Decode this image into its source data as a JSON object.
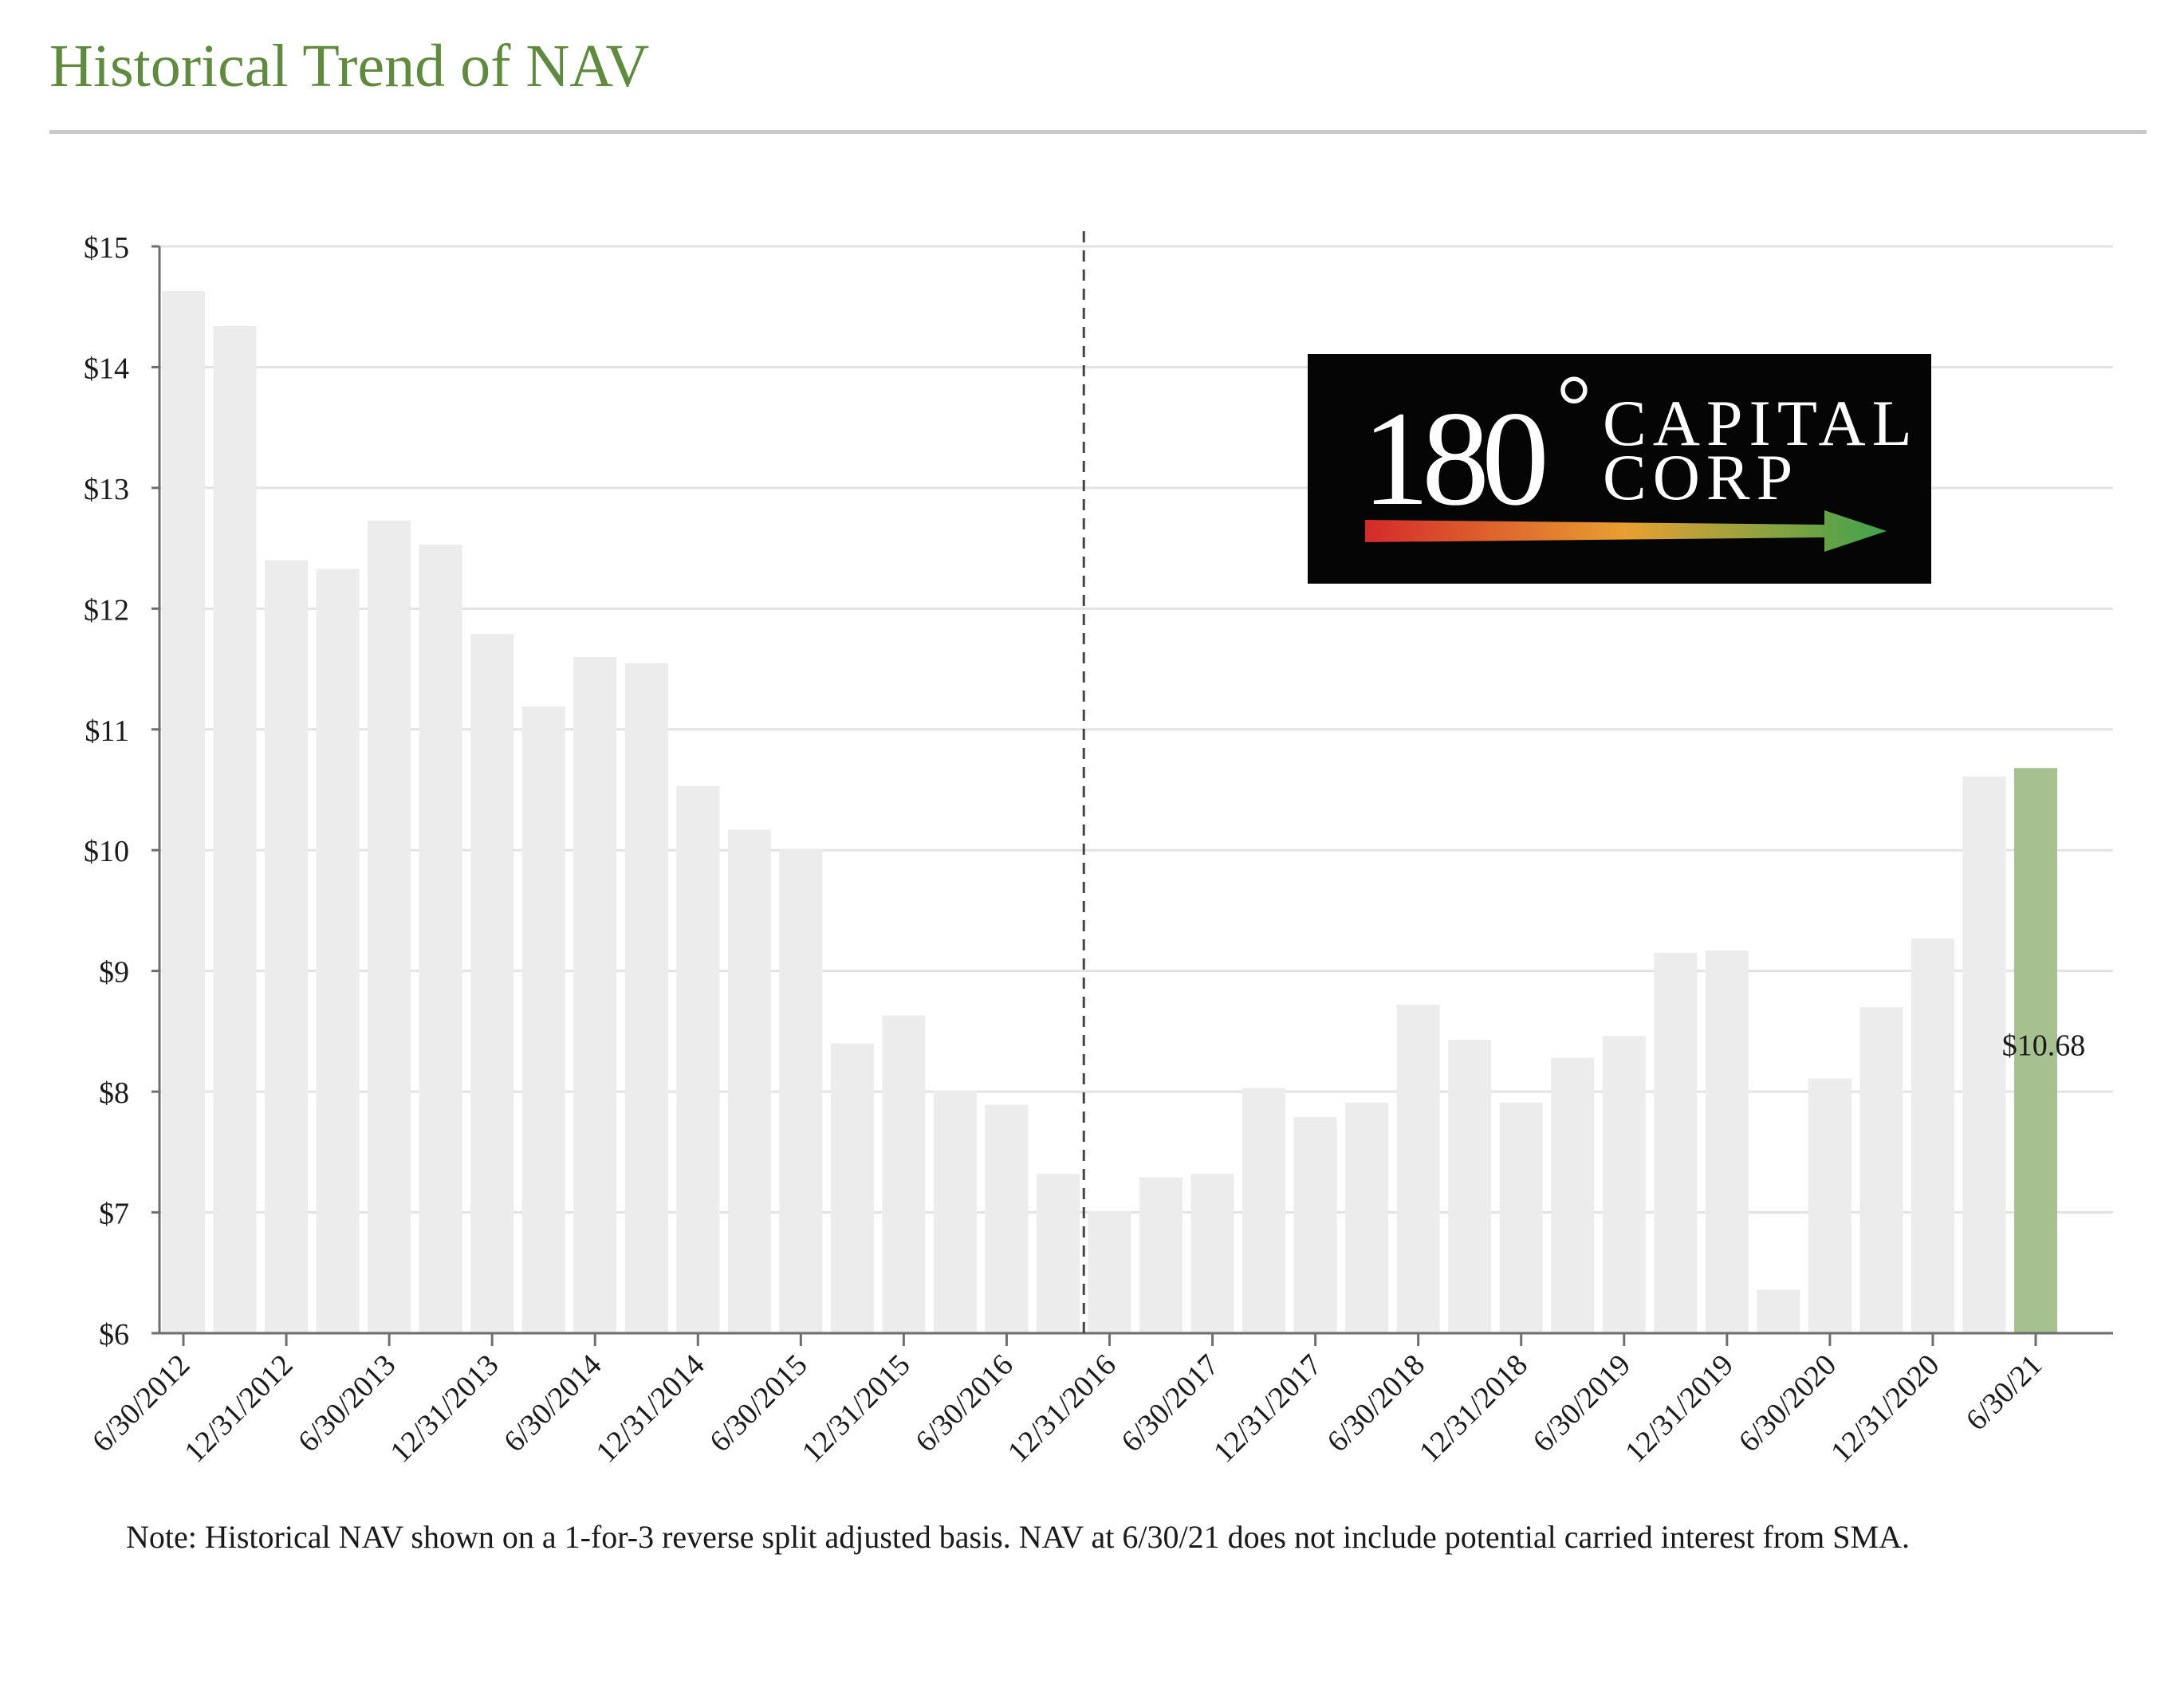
{
  "page": {
    "title": "Historical Trend of NAV",
    "title_color": "#5f8a3f",
    "note": "Note: Historical NAV shown on a 1-for-3 reverse split adjusted basis.  NAV at 6/30/21 does not include potential carried interest from SMA."
  },
  "logo": {
    "number_text": "180",
    "degree_text": "°",
    "line1": "CAPITAL",
    "line2": "CORP",
    "arrow_colors": [
      "#d42a2a",
      "#e8a030",
      "#3fa34d"
    ]
  },
  "chart_data": {
    "type": "bar",
    "categories": [
      "6/30/2012",
      "9/30/2012",
      "12/31/2012",
      "3/31/2013",
      "6/30/2013",
      "9/30/2013",
      "12/31/2013",
      "3/31/2014",
      "6/30/2014",
      "9/30/2014",
      "12/31/2014",
      "3/31/2015",
      "6/30/2015",
      "9/30/2015",
      "12/31/2015",
      "3/31/2016",
      "6/30/2016",
      "9/30/2016",
      "12/31/2016",
      "3/31/2017",
      "6/30/2017",
      "9/30/2017",
      "12/31/2017",
      "3/31/2018",
      "6/30/2018",
      "9/30/2018",
      "12/31/2018",
      "3/31/2019",
      "6/30/2019",
      "9/30/2019",
      "12/31/2019",
      "3/31/2020",
      "6/30/2020",
      "9/30/2020",
      "12/31/2020",
      "3/31/2021",
      "6/30/21"
    ],
    "tick_labels": [
      "6/30/2012",
      "",
      "12/31/2012",
      "",
      "6/30/2013",
      "",
      "12/31/2013",
      "",
      "6/30/2014",
      "",
      "12/31/2014",
      "",
      "6/30/2015",
      "",
      "12/31/2015",
      "",
      "6/30/2016",
      "",
      "12/31/2016",
      "",
      "6/30/2017",
      "",
      "12/31/2017",
      "",
      "6/30/2018",
      "",
      "12/31/2018",
      "",
      "6/30/2019",
      "",
      "12/31/2019",
      "",
      "6/30/2020",
      "",
      "12/31/2020",
      "",
      "6/30/21"
    ],
    "values": [
      14.63,
      14.34,
      12.4,
      12.33,
      12.73,
      12.53,
      11.79,
      11.19,
      11.6,
      11.55,
      10.53,
      10.17,
      10.01,
      8.4,
      8.63,
      8.01,
      7.89,
      7.32,
      7.01,
      7.29,
      7.32,
      8.03,
      7.79,
      7.91,
      8.72,
      8.43,
      7.91,
      8.28,
      8.46,
      9.15,
      9.17,
      6.36,
      8.11,
      8.7,
      9.27,
      10.61,
      10.68
    ],
    "highlight_index": 36,
    "data_labels": [
      {
        "index": 36,
        "text": "$10.68"
      }
    ],
    "y_ticks": [
      "$6",
      "$7",
      "$8",
      "$9",
      "$10",
      "$11",
      "$12",
      "$13",
      "$14",
      "$15"
    ],
    "ylim": [
      6,
      15
    ],
    "xlabel": "",
    "ylabel": "",
    "grid": true,
    "divider_after_category": "12/31/2016",
    "bar_color": "#ececec",
    "highlight_color": "#a6c08f"
  }
}
